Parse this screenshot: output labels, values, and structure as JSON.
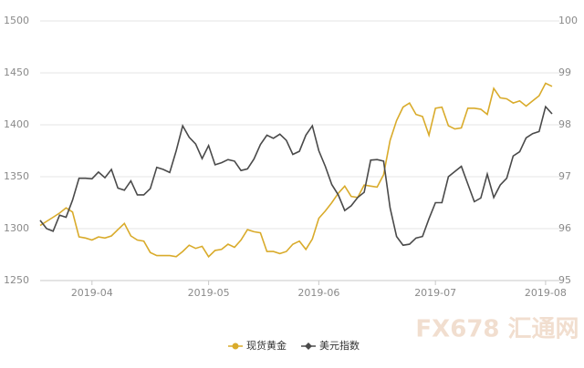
{
  "chart_data": {
    "type": "line",
    "categories": [
      null,
      null,
      null,
      null,
      null,
      null,
      null,
      null,
      "2019-04",
      null,
      null,
      null,
      null,
      null,
      null,
      null,
      null,
      null,
      null,
      null,
      null,
      null,
      null,
      null,
      null,
      null,
      "2019-05",
      null,
      null,
      null,
      null,
      null,
      null,
      null,
      null,
      null,
      null,
      null,
      null,
      null,
      null,
      null,
      null,
      "2019-06",
      null,
      null,
      null,
      null,
      null,
      null,
      null,
      null,
      null,
      null,
      null,
      null,
      null,
      null,
      null,
      null,
      null,
      "2019-07",
      null,
      null,
      null,
      null,
      null,
      null,
      null,
      null,
      null,
      null,
      null,
      null,
      null,
      null,
      null,
      null,
      "2019-08",
      null
    ],
    "series": [
      {
        "name": "现货黄金",
        "color": "#d9ab2b",
        "marker": "circle",
        "values": [
          1303,
          1307,
          1311,
          1315,
          1320,
          1316,
          1292,
          1291,
          1289,
          1292,
          1291,
          1293,
          1299,
          1305,
          1293,
          1289,
          1288,
          1277,
          1274,
          1274,
          1274,
          1273,
          1278,
          1284,
          1281,
          1283,
          1273,
          1279,
          1280,
          1285,
          1282,
          1289,
          1299,
          1297,
          1296,
          1278,
          1278,
          1276,
          1278,
          1285,
          1288,
          1280,
          1290,
          1310,
          1317,
          1325,
          1334,
          1341,
          1331,
          1330,
          1342,
          1341,
          1340,
          1352,
          1385,
          1404,
          1417,
          1421,
          1410,
          1408,
          1390,
          1416,
          1417,
          1399,
          1396,
          1397,
          1416,
          1416,
          1415,
          1410,
          1435,
          1426,
          1425,
          1421,
          1423,
          1418,
          1423,
          1428,
          1440,
          1437
        ]
      },
      {
        "name": "美元指数",
        "color": "#4a4a4a",
        "marker": "diamond",
        "axis": "y2",
        "values": [
          96.16,
          96.0,
          95.95,
          96.26,
          96.22,
          96.55,
          96.97,
          96.97,
          96.96,
          97.09,
          96.98,
          97.14,
          96.78,
          96.74,
          96.92,
          96.65,
          96.65,
          96.77,
          97.18,
          97.14,
          97.08,
          97.5,
          97.98,
          97.76,
          97.63,
          97.35,
          97.6,
          97.23,
          97.27,
          97.33,
          97.3,
          97.12,
          97.15,
          97.34,
          97.62,
          97.8,
          97.74,
          97.82,
          97.7,
          97.43,
          97.49,
          97.8,
          97.98,
          97.5,
          97.2,
          96.85,
          96.65,
          96.35,
          96.44,
          96.6,
          96.7,
          97.32,
          97.33,
          97.3,
          96.4,
          95.85,
          95.68,
          95.7,
          95.82,
          95.85,
          96.19,
          96.5,
          96.5,
          97.0,
          97.1,
          97.2,
          96.86,
          96.52,
          96.59,
          97.05,
          96.6,
          96.84,
          96.97,
          97.4,
          97.48,
          97.75,
          97.83,
          97.87,
          98.35,
          98.21
        ]
      }
    ],
    "ylim": [
      1250,
      1500
    ],
    "yticks": [
      1250,
      1300,
      1350,
      1400,
      1450,
      1500
    ],
    "y2lim": [
      95,
      100
    ],
    "y2ticks": [
      95,
      96,
      97,
      98,
      99,
      100
    ],
    "grid": true,
    "legend": "bottom",
    "watermark": "FX678 汇通网"
  }
}
